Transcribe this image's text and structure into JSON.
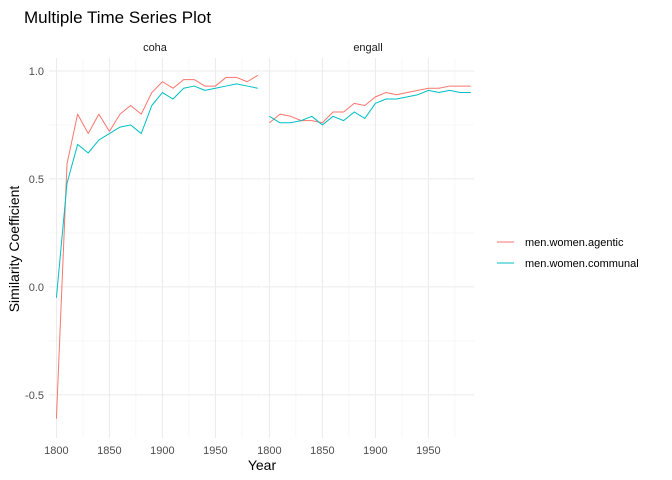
{
  "chart_data": {
    "type": "line",
    "title": "Multiple Time Series Plot",
    "xlabel": "Year",
    "ylabel": "Similarity Coefficient",
    "xlim": [
      1793,
      1993
    ],
    "ylim": [
      -0.7,
      1.06
    ],
    "x_ticks": [
      1800,
      1850,
      1900,
      1950
    ],
    "y_ticks": [
      -0.5,
      0.0,
      0.5,
      1.0
    ],
    "y_tick_labels": [
      "-0.5",
      "0.0",
      "0.5",
      "1.0"
    ],
    "grid": true,
    "legend_position": "right",
    "facets": [
      {
        "name": "coha",
        "x": [
          1800,
          1810,
          1820,
          1830,
          1840,
          1850,
          1860,
          1870,
          1880,
          1890,
          1900,
          1910,
          1920,
          1930,
          1940,
          1950,
          1960,
          1970,
          1980,
          1990
        ],
        "series": [
          {
            "name": "men.women.agentic",
            "color": "#F8766D",
            "values": [
              -0.61,
              0.57,
              0.8,
              0.71,
              0.8,
              0.72,
              0.8,
              0.84,
              0.8,
              0.9,
              0.95,
              0.92,
              0.96,
              0.96,
              0.93,
              0.93,
              0.97,
              0.97,
              0.95,
              0.98
            ]
          },
          {
            "name": "men.women.communal",
            "color": "#00BFC4",
            "values": [
              -0.05,
              0.48,
              0.66,
              0.62,
              0.68,
              0.71,
              0.74,
              0.75,
              0.71,
              0.84,
              0.9,
              0.87,
              0.92,
              0.93,
              0.91,
              0.92,
              0.93,
              0.94,
              0.93,
              0.92
            ]
          }
        ]
      },
      {
        "name": "engall",
        "x": [
          1800,
          1810,
          1820,
          1830,
          1840,
          1850,
          1860,
          1870,
          1880,
          1890,
          1900,
          1910,
          1920,
          1930,
          1940,
          1950,
          1960,
          1970,
          1980,
          1990
        ],
        "series": [
          {
            "name": "men.women.agentic",
            "color": "#F8766D",
            "values": [
              0.76,
              0.8,
              0.79,
              0.77,
              0.77,
              0.76,
              0.81,
              0.81,
              0.85,
              0.84,
              0.88,
              0.9,
              0.89,
              0.9,
              0.91,
              0.92,
              0.92,
              0.93,
              0.93,
              0.93
            ]
          },
          {
            "name": "men.women.communal",
            "color": "#00BFC4",
            "values": [
              0.79,
              0.76,
              0.76,
              0.77,
              0.79,
              0.75,
              0.79,
              0.77,
              0.81,
              0.78,
              0.85,
              0.87,
              0.87,
              0.88,
              0.89,
              0.91,
              0.9,
              0.91,
              0.9,
              0.9
            ]
          }
        ]
      }
    ],
    "legend": [
      {
        "name": "men.women.agentic",
        "color": "#F8766D"
      },
      {
        "name": "men.women.communal",
        "color": "#00BFC4"
      }
    ]
  }
}
